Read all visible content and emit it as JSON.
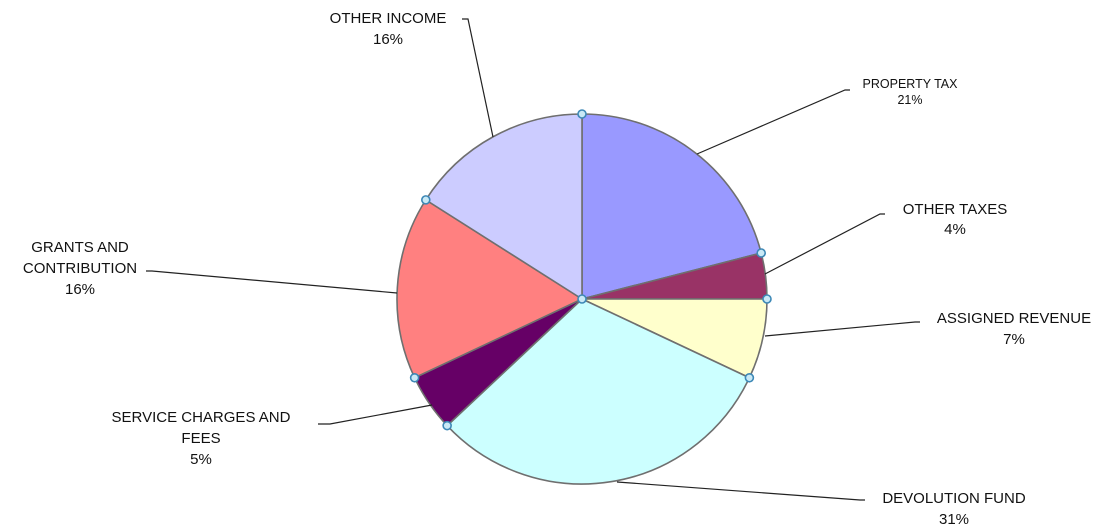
{
  "chart_data": {
    "type": "pie",
    "title": "",
    "slices": [
      {
        "label": "PROPERTY TAX",
        "pct_label": "21%",
        "value": 21,
        "color": "#9999ff"
      },
      {
        "label": "OTHER TAXES",
        "pct_label": "4%",
        "value": 4,
        "color": "#993366"
      },
      {
        "label": "ASSIGNED REVENUE",
        "pct_label": "7%",
        "value": 7,
        "color": "#ffffcc"
      },
      {
        "label": "DEVOLUTION FUND",
        "pct_label": "31%",
        "value": 31,
        "color": "#ccffff"
      },
      {
        "label": "SERVICE CHARGES AND FEES",
        "label_lines": [
          "SERVICE CHARGES AND",
          "FEES"
        ],
        "pct_label": "5%",
        "value": 5,
        "color": "#660066"
      },
      {
        "label": "GRANTS AND CONTRIBUTION",
        "label_lines": [
          "GRANTS AND",
          "CONTRIBUTION"
        ],
        "pct_label": "16%",
        "value": 16,
        "color": "#ff8080"
      },
      {
        "label": "OTHER INCOME",
        "pct_label": "16%",
        "value": 16,
        "color": "#ccccff"
      }
    ]
  }
}
